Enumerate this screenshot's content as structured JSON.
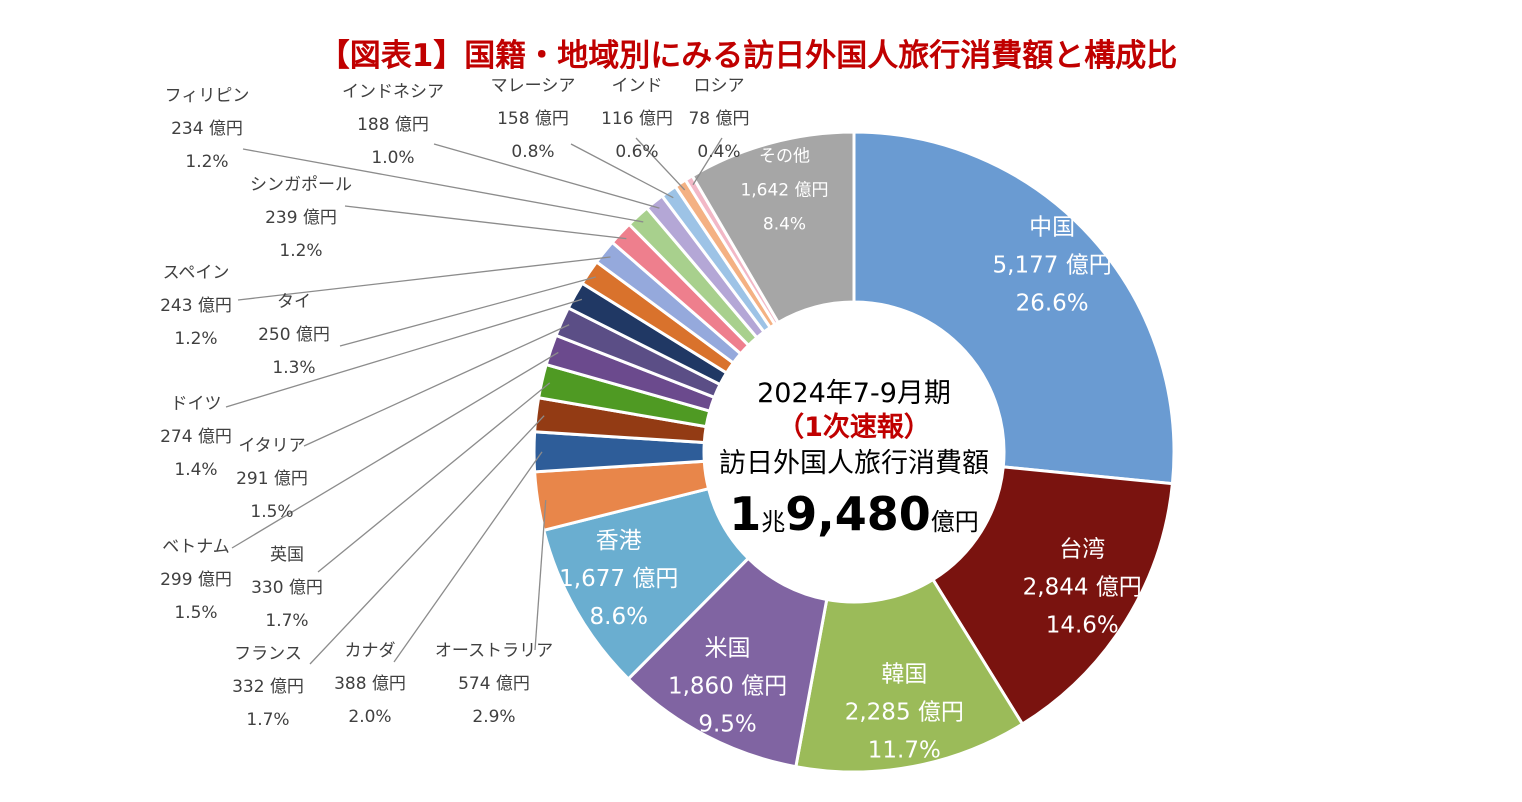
{
  "chart_data": {
    "type": "pie",
    "title": "【図表1】国籍・地域別にみる訪日外国人旅行消費額と構成比",
    "unit": "億円",
    "center": {
      "period": "2024年7-9月期",
      "status": "（1次速報）",
      "label": "訪日外国人旅行消費額",
      "total_prefix": "1",
      "total_chou": "兆",
      "total_main": "9,480",
      "total_suffix": "億円"
    },
    "slices": [
      {
        "name": "中国",
        "value": 5177,
        "value_label": "5,177 億円",
        "pct": 26.6,
        "pct_label": "26.6%",
        "color": "#6a9bd2"
      },
      {
        "name": "台湾",
        "value": 2844,
        "value_label": "2,844 億円",
        "pct": 14.6,
        "pct_label": "14.6%",
        "color": "#7a130f"
      },
      {
        "name": "韓国",
        "value": 2285,
        "value_label": "2,285 億円",
        "pct": 11.7,
        "pct_label": "11.7%",
        "color": "#9bbb59"
      },
      {
        "name": "米国",
        "value": 1860,
        "value_label": "1,860 億円",
        "pct": 9.5,
        "pct_label": "9.5%",
        "color": "#8064a2"
      },
      {
        "name": "香港",
        "value": 1677,
        "value_label": "1,677 億円",
        "pct": 8.6,
        "pct_label": "8.6%",
        "color": "#6aaed0"
      },
      {
        "name": "オーストラリア",
        "value": 574,
        "value_label": "574 億円",
        "pct": 2.9,
        "pct_label": "2.9%",
        "color": "#e8864a"
      },
      {
        "name": "カナダ",
        "value": 388,
        "value_label": "388 億円",
        "pct": 2.0,
        "pct_label": "2.0%",
        "color": "#2e5d99"
      },
      {
        "name": "フランス",
        "value": 332,
        "value_label": "332 億円",
        "pct": 1.7,
        "pct_label": "1.7%",
        "color": "#933b14"
      },
      {
        "name": "英国",
        "value": 330,
        "value_label": "330 億円",
        "pct": 1.7,
        "pct_label": "1.7%",
        "color": "#4f9a23"
      },
      {
        "name": "ベトナム",
        "value": 299,
        "value_label": "299 億円",
        "pct": 1.5,
        "pct_label": "1.5%",
        "color": "#6b4a8d"
      },
      {
        "name": "イタリア",
        "value": 291,
        "value_label": "291 億円",
        "pct": 1.5,
        "pct_label": "1.5%",
        "color": "#5b4e86"
      },
      {
        "name": "ドイツ",
        "value": 274,
        "value_label": "274 億円",
        "pct": 1.4,
        "pct_label": "1.4%",
        "color": "#203864"
      },
      {
        "name": "タイ",
        "value": 250,
        "value_label": "250 億円",
        "pct": 1.3,
        "pct_label": "1.3%",
        "color": "#d9722c"
      },
      {
        "name": "スペイン",
        "value": 243,
        "value_label": "243 億円",
        "pct": 1.2,
        "pct_label": "1.2%",
        "color": "#95a9dc"
      },
      {
        "name": "シンガポール",
        "value": 239,
        "value_label": "239 億円",
        "pct": 1.2,
        "pct_label": "1.2%",
        "color": "#ee7f8d"
      },
      {
        "name": "フィリピン",
        "value": 234,
        "value_label": "234 億円",
        "pct": 1.2,
        "pct_label": "1.2%",
        "color": "#a8d08d"
      },
      {
        "name": "インドネシア",
        "value": 188,
        "value_label": "188 億円",
        "pct": 1.0,
        "pct_label": "1.0%",
        "color": "#b4a7d6"
      },
      {
        "name": "マレーシア",
        "value": 158,
        "value_label": "158 億円",
        "pct": 0.8,
        "pct_label": "0.8%",
        "color": "#9dc3e6"
      },
      {
        "name": "インド",
        "value": 116,
        "value_label": "116 億円",
        "pct": 0.6,
        "pct_label": "0.6%",
        "color": "#f4b183"
      },
      {
        "name": "ロシア",
        "value": 78,
        "value_label": "78 億円",
        "pct": 0.4,
        "pct_label": "0.4%",
        "color": "#f2b8c6"
      },
      {
        "name": "その他",
        "value": 1642,
        "value_label": "1,642 億円",
        "pct": 8.4,
        "pct_label": "8.4%",
        "color": "#a6a6a6"
      }
    ]
  },
  "colors": {
    "title": "#c00000",
    "status": "#c00000",
    "center_text": "#000000",
    "outer_label": "#404040",
    "leader_line": "#808080"
  }
}
